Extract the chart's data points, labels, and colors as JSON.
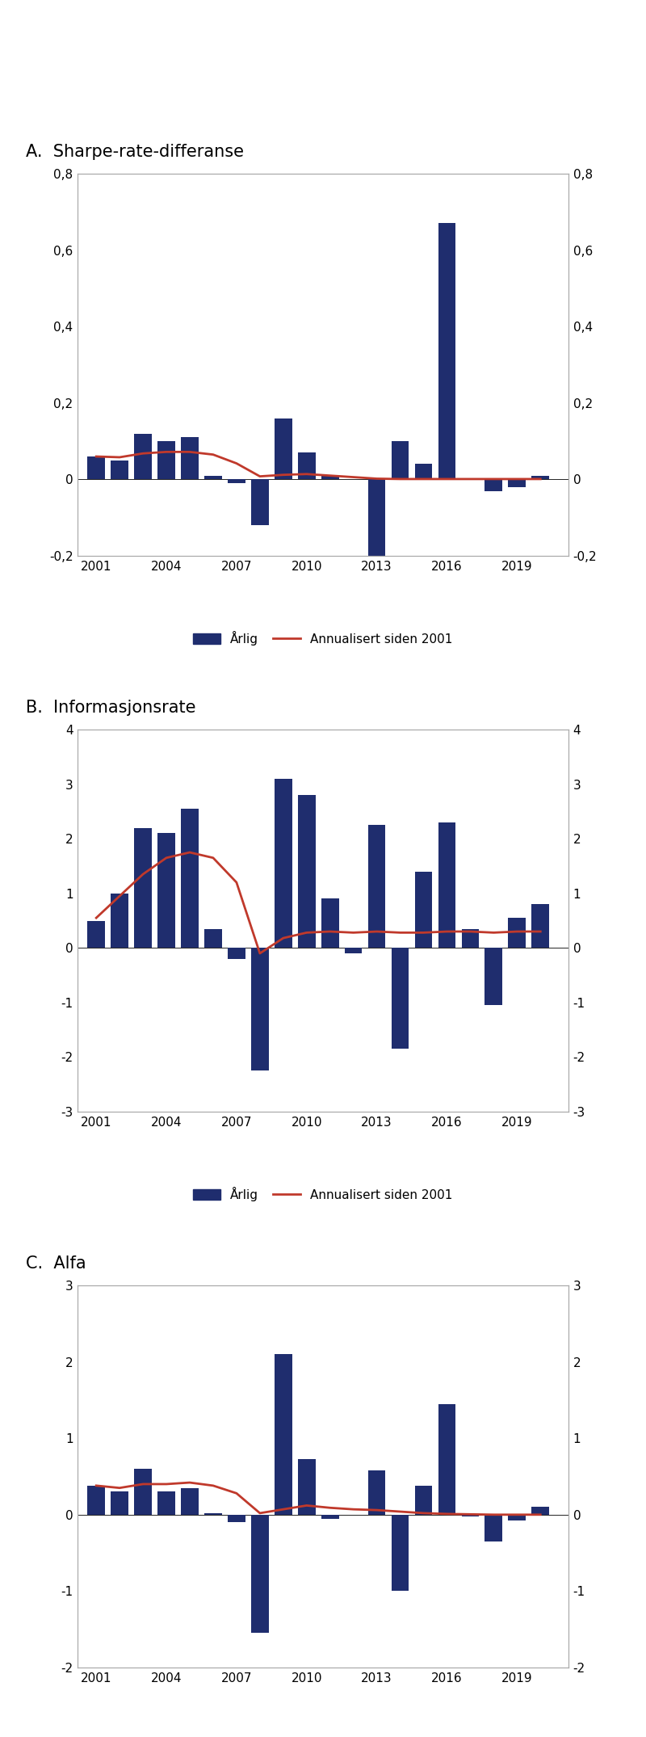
{
  "title_A": "A.  Sharpe-rate-differanse",
  "title_B": "B.  Informasjonsrate",
  "title_C": "C.  Alfa",
  "years": [
    2001,
    2002,
    2003,
    2004,
    2005,
    2006,
    2007,
    2008,
    2009,
    2010,
    2011,
    2012,
    2013,
    2014,
    2015,
    2016,
    2017,
    2018,
    2019,
    2020
  ],
  "sharpe_bars": [
    0.06,
    0.05,
    0.12,
    0.1,
    0.11,
    0.01,
    -0.01,
    -0.12,
    0.16,
    0.07,
    0.01,
    0.0,
    -0.24,
    0.1,
    0.04,
    0.67,
    0.0,
    -0.03,
    -0.02,
    0.01
  ],
  "sharpe_line": [
    0.06,
    0.058,
    0.068,
    0.072,
    0.072,
    0.065,
    0.042,
    0.008,
    0.012,
    0.014,
    0.01,
    0.006,
    0.002,
    0.001,
    0.001,
    0.001,
    0.001,
    0.001,
    0.001,
    0.001
  ],
  "sharpe_ylim": [
    -0.2,
    0.8
  ],
  "sharpe_yticks": [
    -0.2,
    0.0,
    0.2,
    0.4,
    0.6,
    0.8
  ],
  "info_bars": [
    0.5,
    1.0,
    2.2,
    2.1,
    2.55,
    0.35,
    -0.2,
    -2.25,
    3.1,
    2.8,
    0.9,
    -0.1,
    2.25,
    -1.85,
    1.4,
    2.3,
    0.35,
    -1.05,
    0.55,
    0.8
  ],
  "info_line": [
    0.55,
    0.95,
    1.35,
    1.65,
    1.75,
    1.65,
    1.2,
    -0.1,
    0.18,
    0.28,
    0.3,
    0.28,
    0.3,
    0.28,
    0.28,
    0.3,
    0.3,
    0.28,
    0.3,
    0.3
  ],
  "info_ylim": [
    -3,
    4
  ],
  "info_yticks": [
    -3,
    -2,
    -1,
    0,
    1,
    2,
    3,
    4
  ],
  "alfa_bars": [
    0.38,
    0.3,
    0.6,
    0.3,
    0.35,
    0.02,
    -0.1,
    -1.55,
    2.1,
    0.73,
    -0.05,
    0.0,
    0.58,
    -1.0,
    0.38,
    1.45,
    -0.02,
    -0.35,
    -0.08,
    0.1
  ],
  "alfa_line": [
    0.38,
    0.35,
    0.4,
    0.4,
    0.42,
    0.38,
    0.28,
    0.02,
    0.07,
    0.12,
    0.09,
    0.07,
    0.06,
    0.04,
    0.02,
    0.01,
    0.005,
    0.0,
    0.0,
    0.0
  ],
  "alfa_ylim": [
    -2,
    3
  ],
  "alfa_yticks": [
    -2,
    -1,
    0,
    1,
    2,
    3
  ],
  "bar_color": "#1f2d6e",
  "line_color": "#c0392b",
  "legend_bar_label": "Årlig",
  "legend_line_label": "Annualisert siden 2001",
  "xticks": [
    2001,
    2004,
    2007,
    2010,
    2013,
    2016,
    2019
  ],
  "background_color": "#ffffff",
  "title_fontsize": 15,
  "tick_fontsize": 11,
  "legend_fontsize": 11
}
